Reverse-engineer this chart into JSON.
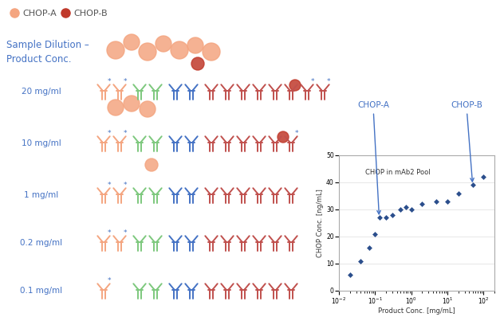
{
  "scatter_x": [
    0.02,
    0.04,
    0.07,
    0.1,
    0.13,
    0.2,
    0.3,
    0.5,
    0.7,
    1.0,
    2.0,
    5.0,
    10.0,
    20.0,
    50.0,
    100.0
  ],
  "scatter_y": [
    6,
    11,
    16,
    21,
    27,
    27,
    28,
    30,
    31,
    30,
    32,
    33,
    33,
    36,
    39,
    42
  ],
  "scatter_color": "#2B4E8C",
  "xlabel": "Product Conc. [mg/mL]",
  "ylabel": "CHOP Conc. [ng/mL]",
  "inset_title": "CHOP in mAb2 Pool",
  "chop_a_label": "CHOP-A",
  "chop_b_label": "CHOP-B",
  "arrow_color": "#4472C4",
  "ylim": [
    0,
    50
  ],
  "yticks": [
    0,
    10,
    20,
    30,
    40,
    50
  ],
  "legend_chop_a_color": "#F4A580",
  "legend_chop_b_color": "#C0392B",
  "bg_color": "#FFFFFF",
  "coral": "#F4A580",
  "green_ab": "#7DC87D",
  "blue_ab": "#4472C4",
  "dark_red": "#C0504D",
  "dilution_labels": [
    "20 mg/ml",
    "10 mg/ml",
    "1 mg/ml",
    "0.2 mg/ml",
    "0.1 mg/ml"
  ],
  "sample_dilution_text": "Sample Dilution –\nProduct Conc.",
  "label_color": "#4472C4",
  "text_color": "#555555"
}
